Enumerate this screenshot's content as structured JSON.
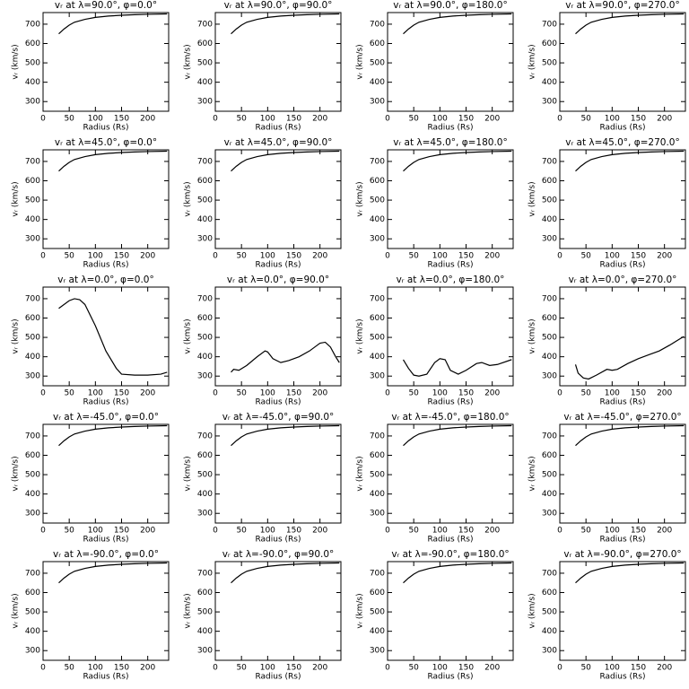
{
  "chart_data": [
    {
      "type": "line",
      "title": "vᵣ at λ=90.0°, φ=0.0°",
      "xlabel": "Radius (Rs)",
      "ylabel": "vᵣ (km/s)",
      "x": [
        30,
        40,
        50,
        60,
        80,
        100,
        125,
        150,
        175,
        200,
        237
      ],
      "values": [
        650,
        675,
        695,
        710,
        725,
        735,
        742,
        746,
        749,
        751,
        753
      ],
      "color": "#000000",
      "xlim": [
        0,
        240
      ],
      "ylim": [
        250,
        760
      ],
      "xticks": [
        0,
        50,
        100,
        150,
        200
      ],
      "yticks": [
        300,
        400,
        500,
        600,
        700
      ]
    },
    {
      "type": "line",
      "title": "vᵣ at λ=90.0°, φ=90.0°",
      "xlabel": "Radius (Rs)",
      "ylabel": "vᵣ (km/s)",
      "x": [
        30,
        40,
        50,
        60,
        80,
        100,
        125,
        150,
        175,
        200,
        237
      ],
      "values": [
        650,
        675,
        695,
        710,
        725,
        735,
        742,
        746,
        749,
        751,
        753
      ],
      "color": "#000000",
      "xlim": [
        0,
        240
      ],
      "ylim": [
        250,
        760
      ],
      "xticks": [
        0,
        50,
        100,
        150,
        200
      ],
      "yticks": [
        300,
        400,
        500,
        600,
        700
      ]
    },
    {
      "type": "line",
      "title": "vᵣ at λ=90.0°, φ=180.0°",
      "xlabel": "Radius (Rs)",
      "ylabel": "vᵣ (km/s)",
      "x": [
        30,
        40,
        50,
        60,
        80,
        100,
        125,
        150,
        175,
        200,
        237
      ],
      "values": [
        650,
        675,
        695,
        710,
        725,
        735,
        742,
        746,
        749,
        751,
        753
      ],
      "color": "#000000",
      "xlim": [
        0,
        240
      ],
      "ylim": [
        250,
        760
      ],
      "xticks": [
        0,
        50,
        100,
        150,
        200
      ],
      "yticks": [
        300,
        400,
        500,
        600,
        700
      ]
    },
    {
      "type": "line",
      "title": "vᵣ at λ=90.0°, φ=270.0°",
      "xlabel": "Radius (Rs)",
      "ylabel": "vᵣ (km/s)",
      "x": [
        30,
        40,
        50,
        60,
        80,
        100,
        125,
        150,
        175,
        200,
        237
      ],
      "values": [
        650,
        675,
        695,
        710,
        725,
        735,
        742,
        746,
        749,
        751,
        753
      ],
      "color": "#000000",
      "xlim": [
        0,
        240
      ],
      "ylim": [
        250,
        760
      ],
      "xticks": [
        0,
        50,
        100,
        150,
        200
      ],
      "yticks": [
        300,
        400,
        500,
        600,
        700
      ]
    },
    {
      "type": "line",
      "title": "vᵣ at λ=45.0°, φ=0.0°",
      "xlabel": "Radius (Rs)",
      "ylabel": "vᵣ (km/s)",
      "x": [
        30,
        40,
        50,
        60,
        80,
        100,
        125,
        150,
        175,
        200,
        237
      ],
      "values": [
        650,
        675,
        695,
        710,
        725,
        735,
        742,
        746,
        749,
        751,
        753
      ],
      "color": "#000000",
      "xlim": [
        0,
        240
      ],
      "ylim": [
        250,
        760
      ],
      "xticks": [
        0,
        50,
        100,
        150,
        200
      ],
      "yticks": [
        300,
        400,
        500,
        600,
        700
      ]
    },
    {
      "type": "line",
      "title": "vᵣ at λ=45.0°, φ=90.0°",
      "xlabel": "Radius (Rs)",
      "ylabel": "vᵣ (km/s)",
      "x": [
        30,
        40,
        50,
        60,
        80,
        100,
        125,
        150,
        175,
        200,
        237
      ],
      "values": [
        650,
        675,
        695,
        710,
        725,
        735,
        742,
        746,
        749,
        751,
        753
      ],
      "color": "#000000",
      "xlim": [
        0,
        240
      ],
      "ylim": [
        250,
        760
      ],
      "xticks": [
        0,
        50,
        100,
        150,
        200
      ],
      "yticks": [
        300,
        400,
        500,
        600,
        700
      ]
    },
    {
      "type": "line",
      "title": "vᵣ at λ=45.0°, φ=180.0°",
      "xlabel": "Radius (Rs)",
      "ylabel": "vᵣ (km/s)",
      "x": [
        30,
        40,
        50,
        60,
        80,
        100,
        125,
        150,
        175,
        200,
        237
      ],
      "values": [
        650,
        675,
        695,
        710,
        725,
        735,
        742,
        746,
        749,
        751,
        753
      ],
      "color": "#000000",
      "xlim": [
        0,
        240
      ],
      "ylim": [
        250,
        760
      ],
      "xticks": [
        0,
        50,
        100,
        150,
        200
      ],
      "yticks": [
        300,
        400,
        500,
        600,
        700
      ]
    },
    {
      "type": "line",
      "title": "vᵣ at λ=45.0°, φ=270.0°",
      "xlabel": "Radius (Rs)",
      "ylabel": "vᵣ (km/s)",
      "x": [
        30,
        40,
        50,
        60,
        80,
        100,
        125,
        150,
        175,
        200,
        237
      ],
      "values": [
        650,
        675,
        695,
        710,
        725,
        735,
        742,
        746,
        749,
        751,
        753
      ],
      "color": "#000000",
      "xlim": [
        0,
        240
      ],
      "ylim": [
        250,
        760
      ],
      "xticks": [
        0,
        50,
        100,
        150,
        200
      ],
      "yticks": [
        300,
        400,
        500,
        600,
        700
      ]
    },
    {
      "type": "line",
      "title": "vᵣ at λ=0.0°, φ=0.0°",
      "xlabel": "Radius (Rs)",
      "ylabel": "vᵣ (km/s)",
      "x": [
        30,
        50,
        60,
        70,
        80,
        100,
        120,
        140,
        150,
        175,
        200,
        225,
        237
      ],
      "values": [
        650,
        690,
        700,
        695,
        670,
        560,
        430,
        340,
        310,
        305,
        305,
        310,
        320
      ],
      "color": "#000000",
      "xlim": [
        0,
        240
      ],
      "ylim": [
        250,
        760
      ],
      "xticks": [
        0,
        50,
        100,
        150,
        200
      ],
      "yticks": [
        300,
        400,
        500,
        600,
        700
      ]
    },
    {
      "type": "line",
      "title": "vᵣ at λ=0.0°, φ=90.0°",
      "xlabel": "Radius (Rs)",
      "ylabel": "vᵣ (km/s)",
      "x": [
        30,
        35,
        45,
        60,
        80,
        95,
        100,
        110,
        125,
        140,
        160,
        180,
        200,
        210,
        220,
        230,
        237
      ],
      "values": [
        320,
        335,
        330,
        355,
        400,
        430,
        425,
        390,
        370,
        380,
        400,
        430,
        470,
        475,
        450,
        400,
        370
      ],
      "color": "#000000",
      "xlim": [
        0,
        240
      ],
      "ylim": [
        250,
        760
      ],
      "xticks": [
        0,
        50,
        100,
        150,
        200
      ],
      "yticks": [
        300,
        400,
        500,
        600,
        700
      ]
    },
    {
      "type": "line",
      "title": "vᵣ at λ=0.0°, φ=180.0°",
      "xlabel": "Radius (Rs)",
      "ylabel": "vᵣ (km/s)",
      "x": [
        30,
        40,
        50,
        60,
        75,
        90,
        100,
        110,
        120,
        135,
        150,
        170,
        180,
        195,
        210,
        237
      ],
      "values": [
        385,
        340,
        305,
        300,
        310,
        370,
        390,
        385,
        330,
        310,
        330,
        365,
        370,
        355,
        360,
        385
      ],
      "color": "#000000",
      "xlim": [
        0,
        240
      ],
      "ylim": [
        250,
        760
      ],
      "xticks": [
        0,
        50,
        100,
        150,
        200
      ],
      "yticks": [
        300,
        400,
        500,
        600,
        700
      ]
    },
    {
      "type": "line",
      "title": "vᵣ at λ=0.0°, φ=270.0°",
      "xlabel": "Radius (Rs)",
      "ylabel": "vᵣ (km/s)",
      "x": [
        30,
        35,
        45,
        55,
        70,
        90,
        100,
        110,
        130,
        150,
        170,
        190,
        210,
        237
      ],
      "values": [
        360,
        315,
        290,
        285,
        305,
        335,
        330,
        335,
        365,
        390,
        410,
        430,
        460,
        505
      ],
      "color": "#000000",
      "xlim": [
        0,
        240
      ],
      "ylim": [
        250,
        760
      ],
      "xticks": [
        0,
        50,
        100,
        150,
        200
      ],
      "yticks": [
        300,
        400,
        500,
        600,
        700
      ]
    },
    {
      "type": "line",
      "title": "vᵣ at λ=-45.0°, φ=0.0°",
      "xlabel": "Radius (Rs)",
      "ylabel": "vᵣ (km/s)",
      "x": [
        30,
        40,
        50,
        60,
        80,
        100,
        125,
        150,
        175,
        200,
        237
      ],
      "values": [
        650,
        675,
        695,
        710,
        725,
        735,
        742,
        746,
        749,
        751,
        753
      ],
      "color": "#000000",
      "xlim": [
        0,
        240
      ],
      "ylim": [
        250,
        760
      ],
      "xticks": [
        0,
        50,
        100,
        150,
        200
      ],
      "yticks": [
        300,
        400,
        500,
        600,
        700
      ]
    },
    {
      "type": "line",
      "title": "vᵣ at λ=-45.0°, φ=90.0°",
      "xlabel": "Radius (Rs)",
      "ylabel": "vᵣ (km/s)",
      "x": [
        30,
        40,
        50,
        60,
        80,
        100,
        125,
        150,
        175,
        200,
        237
      ],
      "values": [
        650,
        675,
        695,
        710,
        725,
        735,
        742,
        746,
        749,
        751,
        753
      ],
      "color": "#000000",
      "xlim": [
        0,
        240
      ],
      "ylim": [
        250,
        760
      ],
      "xticks": [
        0,
        50,
        100,
        150,
        200
      ],
      "yticks": [
        300,
        400,
        500,
        600,
        700
      ]
    },
    {
      "type": "line",
      "title": "vᵣ at λ=-45.0°, φ=180.0°",
      "xlabel": "Radius (Rs)",
      "ylabel": "vᵣ (km/s)",
      "x": [
        30,
        40,
        50,
        60,
        80,
        100,
        125,
        150,
        175,
        200,
        237
      ],
      "values": [
        650,
        675,
        695,
        710,
        725,
        735,
        742,
        746,
        749,
        751,
        753
      ],
      "color": "#000000",
      "xlim": [
        0,
        240
      ],
      "ylim": [
        250,
        760
      ],
      "xticks": [
        0,
        50,
        100,
        150,
        200
      ],
      "yticks": [
        300,
        400,
        500,
        600,
        700
      ]
    },
    {
      "type": "line",
      "title": "vᵣ at λ=-45.0°, φ=270.0°",
      "xlabel": "Radius (Rs)",
      "ylabel": "vᵣ (km/s)",
      "x": [
        30,
        40,
        50,
        60,
        80,
        100,
        125,
        150,
        175,
        200,
        237
      ],
      "values": [
        650,
        675,
        695,
        710,
        725,
        735,
        742,
        746,
        749,
        751,
        753
      ],
      "color": "#000000",
      "xlim": [
        0,
        240
      ],
      "ylim": [
        250,
        760
      ],
      "xticks": [
        0,
        50,
        100,
        150,
        200
      ],
      "yticks": [
        300,
        400,
        500,
        600,
        700
      ]
    },
    {
      "type": "line",
      "title": "vᵣ at λ=-90.0°, φ=0.0°",
      "xlabel": "Radius (Rs)",
      "ylabel": "vᵣ (km/s)",
      "x": [
        30,
        40,
        50,
        60,
        80,
        100,
        125,
        150,
        175,
        200,
        237
      ],
      "values": [
        650,
        675,
        695,
        710,
        725,
        735,
        742,
        746,
        749,
        751,
        753
      ],
      "color": "#000000",
      "xlim": [
        0,
        240
      ],
      "ylim": [
        250,
        760
      ],
      "xticks": [
        0,
        50,
        100,
        150,
        200
      ],
      "yticks": [
        300,
        400,
        500,
        600,
        700
      ]
    },
    {
      "type": "line",
      "title": "vᵣ at λ=-90.0°, φ=90.0°",
      "xlabel": "Radius (Rs)",
      "ylabel": "vᵣ (km/s)",
      "x": [
        30,
        40,
        50,
        60,
        80,
        100,
        125,
        150,
        175,
        200,
        237
      ],
      "values": [
        650,
        675,
        695,
        710,
        725,
        735,
        742,
        746,
        749,
        751,
        753
      ],
      "color": "#000000",
      "xlim": [
        0,
        240
      ],
      "ylim": [
        250,
        760
      ],
      "xticks": [
        0,
        50,
        100,
        150,
        200
      ],
      "yticks": [
        300,
        400,
        500,
        600,
        700
      ]
    },
    {
      "type": "line",
      "title": "vᵣ at λ=-90.0°, φ=180.0°",
      "xlabel": "Radius (Rs)",
      "ylabel": "vᵣ (km/s)",
      "x": [
        30,
        40,
        50,
        60,
        80,
        100,
        125,
        150,
        175,
        200,
        237
      ],
      "values": [
        650,
        675,
        695,
        710,
        725,
        735,
        742,
        746,
        749,
        751,
        753
      ],
      "color": "#000000",
      "xlim": [
        0,
        240
      ],
      "ylim": [
        250,
        760
      ],
      "xticks": [
        0,
        50,
        100,
        150,
        200
      ],
      "yticks": [
        300,
        400,
        500,
        600,
        700
      ]
    },
    {
      "type": "line",
      "title": "vᵣ at λ=-90.0°, φ=270.0°",
      "xlabel": "Radius (Rs)",
      "ylabel": "vᵣ (km/s)",
      "x": [
        30,
        40,
        50,
        60,
        80,
        100,
        125,
        150,
        175,
        200,
        237
      ],
      "values": [
        650,
        675,
        695,
        710,
        725,
        735,
        742,
        746,
        749,
        751,
        753
      ],
      "color": "#000000",
      "xlim": [
        0,
        240
      ],
      "ylim": [
        250,
        760
      ],
      "xticks": [
        0,
        50,
        100,
        150,
        200
      ],
      "yticks": [
        300,
        400,
        500,
        600,
        700
      ]
    }
  ]
}
